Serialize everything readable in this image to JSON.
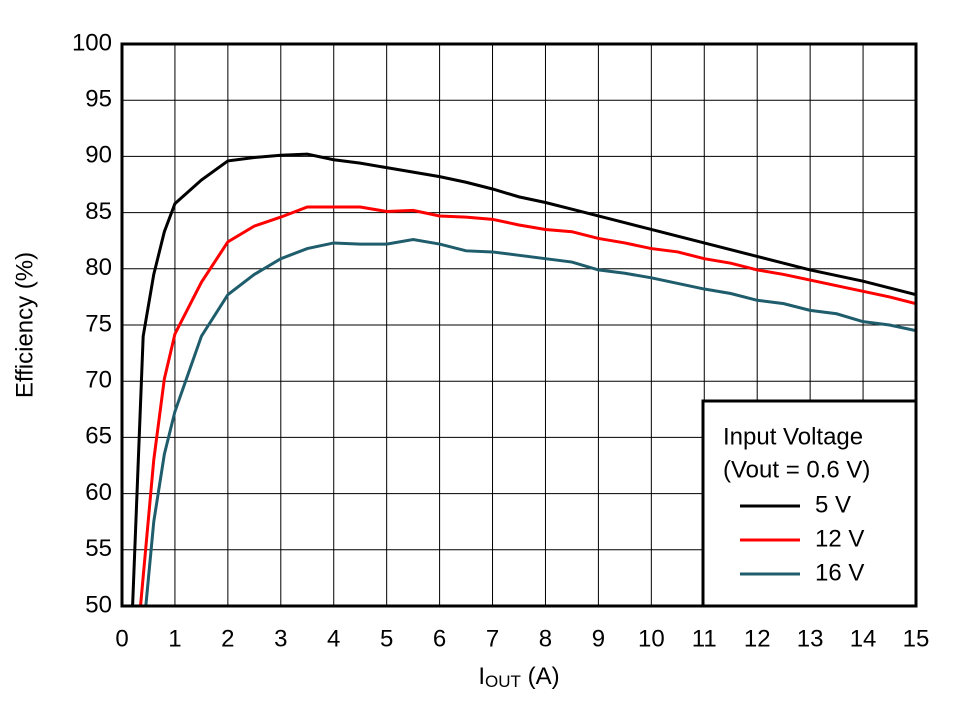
{
  "chart_data": {
    "type": "line",
    "xlabel": [
      "I",
      "OUT",
      " (A)"
    ],
    "ylabel": "Efficiency (%)",
    "xlim": [
      0,
      15
    ],
    "ylim": [
      50,
      100
    ],
    "xticks": [
      0,
      1,
      2,
      3,
      4,
      5,
      6,
      7,
      8,
      9,
      10,
      11,
      12,
      13,
      14,
      15
    ],
    "yticks": [
      50,
      55,
      60,
      65,
      70,
      75,
      80,
      85,
      90,
      95,
      100
    ],
    "grid": true,
    "legend_title": [
      "Input Voltage",
      "(Vout = 0.6 V)"
    ],
    "legend_position": "lower right",
    "series": [
      {
        "name": "5 V",
        "color": "#000000",
        "x": [
          0.2,
          0.4,
          0.6,
          0.8,
          1,
          1.5,
          2,
          2.5,
          3,
          3.5,
          4,
          4.5,
          5,
          5.5,
          6,
          6.5,
          7,
          7.5,
          8,
          8.5,
          9,
          9.5,
          10,
          10.5,
          11,
          11.5,
          12,
          12.5,
          13,
          13.5,
          14,
          14.5,
          15
        ],
        "values": [
          50,
          74,
          79.5,
          83.3,
          85.8,
          87.9,
          89.6,
          89.9,
          90.1,
          90.2,
          89.7,
          89.4,
          89,
          88.6,
          88.2,
          87.7,
          87.1,
          86.4,
          85.9,
          85.3,
          84.7,
          84.1,
          83.5,
          82.9,
          82.3,
          81.7,
          81.1,
          80.5,
          79.9,
          79.4,
          78.9,
          78.3,
          77.7
        ]
      },
      {
        "name": "12 V",
        "color": "#ff0000",
        "x": [
          0.35,
          0.6,
          0.8,
          1,
          1.5,
          2,
          2.5,
          3,
          3.5,
          4,
          4.5,
          5,
          5.5,
          6,
          6.5,
          7,
          7.5,
          8,
          8.5,
          9,
          9.5,
          10,
          10.5,
          11,
          11.5,
          12,
          12.5,
          13,
          13.5,
          14,
          14.5,
          15
        ],
        "values": [
          50,
          63,
          70.2,
          74.2,
          78.8,
          82.4,
          83.8,
          84.6,
          85.5,
          85.5,
          85.5,
          85.1,
          85.2,
          84.7,
          84.6,
          84.4,
          83.9,
          83.5,
          83.3,
          82.7,
          82.3,
          81.8,
          81.5,
          80.9,
          80.5,
          79.9,
          79.5,
          79,
          78.5,
          78,
          77.5,
          76.9
        ]
      },
      {
        "name": "16 V",
        "color": "#1f5d6c",
        "x": [
          0.45,
          0.6,
          0.8,
          1,
          1.5,
          2,
          2.5,
          3,
          3.5,
          4,
          4.5,
          5,
          5.5,
          6,
          6.5,
          7,
          7.5,
          8,
          8.5,
          9,
          9.5,
          10,
          10.5,
          11,
          11.5,
          12,
          12.5,
          13,
          13.5,
          14,
          14.5,
          15
        ],
        "values": [
          50,
          57.5,
          63.5,
          67.3,
          74,
          77.7,
          79.5,
          80.9,
          81.8,
          82.3,
          82.2,
          82.2,
          82.6,
          82.2,
          81.6,
          81.5,
          81.2,
          80.9,
          80.6,
          79.9,
          79.6,
          79.2,
          78.7,
          78.2,
          77.8,
          77.2,
          76.9,
          76.3,
          76,
          75.3,
          75,
          74.5
        ]
      }
    ]
  }
}
